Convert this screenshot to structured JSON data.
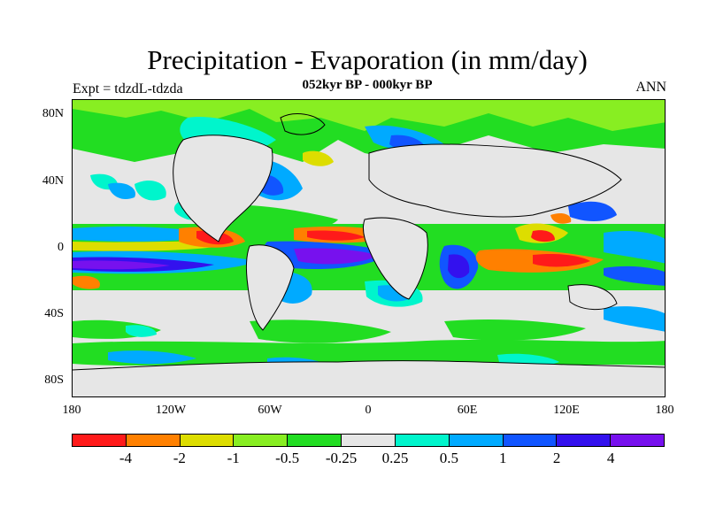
{
  "figure": {
    "title": "Precipitation - Evaporation (in mm/day)",
    "subtitle": "052kyr BP - 000kyr BP",
    "experiment": "Expt = tdzdL-tdzda",
    "season": "ANN"
  },
  "axes": {
    "lat_labels": [
      "80N",
      "40N",
      "0",
      "40S",
      "80S"
    ],
    "lon_labels": [
      "180",
      "120W",
      "60W",
      "0",
      "60E",
      "120E",
      "180"
    ]
  },
  "colorbar": {
    "colors": [
      "#ff1a1a",
      "#ff8000",
      "#dddd00",
      "#88ee22",
      "#22dd22",
      "#e6e6e6",
      "#00f5cc",
      "#00aaff",
      "#1155ff",
      "#3311ee",
      "#7711ee"
    ],
    "labels": [
      "-4",
      "-2",
      "-1",
      "-0.5",
      "-0.25",
      "0.25",
      "0.5",
      "1",
      "2",
      "4"
    ]
  },
  "map": {
    "background": "#e6e6e6",
    "coastline_color": "#000000"
  }
}
